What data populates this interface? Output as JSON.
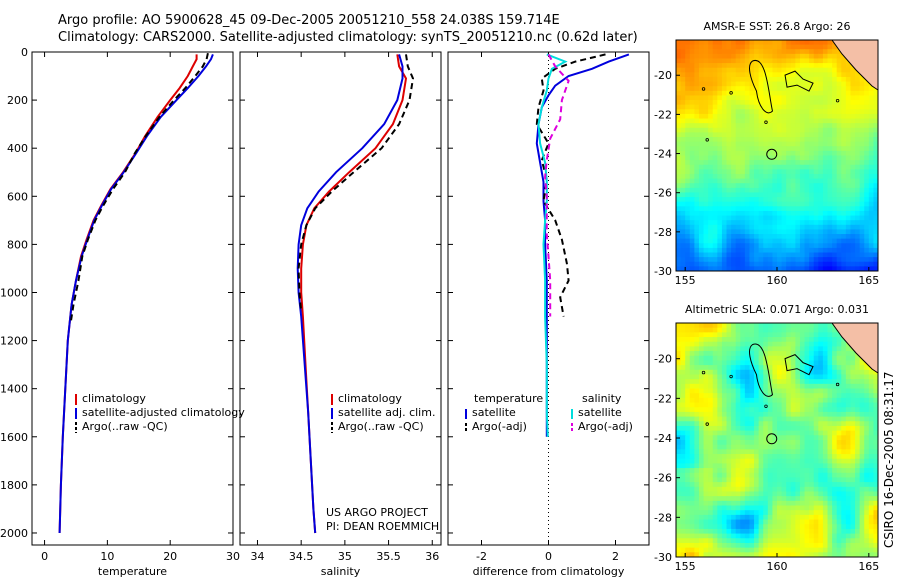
{
  "header": {
    "line1": "Argo profile: AO 5900628_45 09-Dec-2005 20051210_558 24.038S 159.714E",
    "line2": "Climatology: CARS2000. Satellite-adjusted climatology: synTS_20051210.nc (0.62d later)"
  },
  "side_label": "CSIRO 16-Dec-2005 08:31:17",
  "project_note": [
    "US ARGO PROJECT",
    "PI: DEAN ROEMMICH"
  ],
  "colors": {
    "climatology": "#dd0000",
    "satellite": "#0000dd",
    "argo": "#000000",
    "salinity_satellite": "#00dddd",
    "salinity_argo": "#dd00dd"
  },
  "chart_data": [
    {
      "id": "temperature",
      "type": "line",
      "xlabel": "temperature",
      "ylabel": "",
      "xlim": [
        -2,
        30
      ],
      "ylim": [
        2050,
        0
      ],
      "xticks": [
        0,
        10,
        20,
        30
      ],
      "yticks": [
        0,
        200,
        400,
        600,
        800,
        1000,
        1200,
        1400,
        1600,
        1800,
        2000
      ],
      "legend": {
        "placement": "bottom-right",
        "entries": [
          {
            "label": "climatology",
            "color": "#dd0000",
            "dash": false
          },
          {
            "label": "satellite-adjusted climatology",
            "color": "#0000dd",
            "dash": false
          },
          {
            "label": "Argo(..raw -QC)",
            "color": "#000000",
            "dash": true
          }
        ]
      },
      "series": [
        {
          "name": "climatology",
          "color": "#dd0000",
          "dash": false,
          "points": [
            [
              24.2,
              10
            ],
            [
              24.2,
              30
            ],
            [
              23.6,
              60
            ],
            [
              22.8,
              100
            ],
            [
              21.5,
              150
            ],
            [
              20.0,
              200
            ],
            [
              18.0,
              270
            ],
            [
              16.0,
              350
            ],
            [
              14.5,
              420
            ],
            [
              12.5,
              500
            ],
            [
              10.5,
              570
            ],
            [
              9.0,
              640
            ],
            [
              7.8,
              700
            ],
            [
              6.7,
              780
            ],
            [
              5.8,
              850
            ],
            [
              5.0,
              950
            ],
            [
              4.3,
              1050
            ],
            [
              3.7,
              1200
            ],
            [
              3.3,
              1400
            ],
            [
              2.9,
              1600
            ],
            [
              2.6,
              1800
            ],
            [
              2.4,
              2000
            ]
          ]
        },
        {
          "name": "satellite-adjusted climatology",
          "color": "#0000dd",
          "dash": false,
          "points": [
            [
              26.8,
              10
            ],
            [
              26.5,
              30
            ],
            [
              25.7,
              60
            ],
            [
              24.5,
              100
            ],
            [
              22.8,
              150
            ],
            [
              21.0,
              200
            ],
            [
              18.5,
              270
            ],
            [
              16.3,
              350
            ],
            [
              14.6,
              420
            ],
            [
              12.6,
              500
            ],
            [
              10.6,
              570
            ],
            [
              9.1,
              640
            ],
            [
              7.9,
              700
            ],
            [
              6.8,
              780
            ],
            [
              5.9,
              850
            ],
            [
              5.0,
              950
            ],
            [
              4.3,
              1050
            ],
            [
              3.7,
              1200
            ],
            [
              3.3,
              1400
            ],
            [
              2.9,
              1600
            ],
            [
              2.6,
              1800
            ],
            [
              2.4,
              2000
            ]
          ]
        },
        {
          "name": "Argo(..raw -QC)",
          "color": "#000000",
          "dash": true,
          "points": [
            [
              26.0,
              5
            ],
            [
              25.8,
              30
            ],
            [
              25.2,
              60
            ],
            [
              24.0,
              100
            ],
            [
              22.4,
              150
            ],
            [
              20.6,
              200
            ],
            [
              18.3,
              270
            ],
            [
              16.1,
              350
            ],
            [
              14.4,
              420
            ],
            [
              12.8,
              500
            ],
            [
              10.9,
              570
            ],
            [
              9.3,
              640
            ],
            [
              8.1,
              700
            ],
            [
              6.9,
              780
            ],
            [
              6.0,
              850
            ],
            [
              5.4,
              950
            ],
            [
              4.6,
              1050
            ],
            [
              4.2,
              1120
            ]
          ]
        }
      ]
    },
    {
      "id": "salinity",
      "type": "line",
      "xlabel": "salinity",
      "ylabel": "",
      "xlim": [
        33.8,
        36.1
      ],
      "ylim": [
        2050,
        0
      ],
      "xticks": [
        34,
        34.5,
        35,
        35.5,
        36
      ],
      "yticks": [
        0,
        200,
        400,
        600,
        800,
        1000,
        1200,
        1400,
        1600,
        1800,
        2000
      ],
      "legend": {
        "placement": "bottom-right",
        "entries": [
          {
            "label": "climatology",
            "color": "#dd0000",
            "dash": false
          },
          {
            "label": "satellite adj. clim.",
            "color": "#0000dd",
            "dash": false
          },
          {
            "label": "Argo(..raw -QC)",
            "color": "#000000",
            "dash": true
          }
        ]
      },
      "series": [
        {
          "name": "climatology",
          "color": "#dd0000",
          "dash": false,
          "points": [
            [
              35.6,
              10
            ],
            [
              35.62,
              60
            ],
            [
              35.7,
              110
            ],
            [
              35.66,
              200
            ],
            [
              35.55,
              300
            ],
            [
              35.35,
              400
            ],
            [
              35.05,
              500
            ],
            [
              34.82,
              580
            ],
            [
              34.65,
              650
            ],
            [
              34.56,
              720
            ],
            [
              34.52,
              800
            ],
            [
              34.5,
              900
            ],
            [
              34.5,
              1000
            ],
            [
              34.52,
              1100
            ],
            [
              34.55,
              1300
            ],
            [
              34.58,
              1500
            ],
            [
              34.61,
              1700
            ],
            [
              34.64,
              1900
            ],
            [
              34.66,
              2000
            ]
          ]
        },
        {
          "name": "satellite adj. clim.",
          "color": "#0000dd",
          "dash": false,
          "points": [
            [
              35.62,
              10
            ],
            [
              35.66,
              60
            ],
            [
              35.66,
              110
            ],
            [
              35.6,
              200
            ],
            [
              35.45,
              300
            ],
            [
              35.2,
              400
            ],
            [
              34.9,
              500
            ],
            [
              34.7,
              580
            ],
            [
              34.57,
              650
            ],
            [
              34.5,
              720
            ],
            [
              34.47,
              800
            ],
            [
              34.46,
              900
            ],
            [
              34.47,
              1000
            ],
            [
              34.5,
              1100
            ],
            [
              34.54,
              1300
            ],
            [
              34.58,
              1500
            ],
            [
              34.61,
              1700
            ],
            [
              34.64,
              1900
            ],
            [
              34.66,
              2000
            ]
          ]
        },
        {
          "name": "Argo(..raw -QC)",
          "color": "#000000",
          "dash": true,
          "points": [
            [
              35.7,
              10
            ],
            [
              35.72,
              60
            ],
            [
              35.78,
              110
            ],
            [
              35.74,
              200
            ],
            [
              35.62,
              300
            ],
            [
              35.42,
              400
            ],
            [
              35.1,
              500
            ],
            [
              34.85,
              580
            ],
            [
              34.66,
              650
            ],
            [
              34.56,
              720
            ],
            [
              34.5,
              800
            ],
            [
              34.47,
              900
            ],
            [
              34.48,
              1000
            ],
            [
              34.5,
              1080
            ]
          ]
        }
      ]
    },
    {
      "id": "difference",
      "type": "line",
      "xlabel": "difference from climatology",
      "ylabel": "",
      "xlim": [
        -3,
        3
      ],
      "ylim": [
        2050,
        0
      ],
      "xticks": [
        -2,
        0,
        2
      ],
      "yticks": [
        0,
        200,
        400,
        600,
        800,
        1000,
        1200,
        1400,
        1600,
        1800,
        2000
      ],
      "legend": {
        "placement": "bottom",
        "entries": [
          {
            "label": "temperature",
            "color": "",
            "dash": false
          },
          {
            "label": "satellite",
            "color": "#0000dd",
            "dash": false
          },
          {
            "label": "Argo(-adj)",
            "color": "#000000",
            "dash": true
          },
          {
            "label": "salinity",
            "color": "",
            "dash": false
          },
          {
            "label": "satellite",
            "color": "#00dddd",
            "dash": false
          },
          {
            "label": "Argo(-adj)",
            "color": "#dd00dd",
            "dash": true
          }
        ]
      },
      "series": [
        {
          "name": "temperature satellite",
          "color": "#0000dd",
          "dash": false,
          "points": [
            [
              2.4,
              10
            ],
            [
              1.8,
              40
            ],
            [
              1.3,
              70
            ],
            [
              0.6,
              100
            ],
            [
              0.2,
              140
            ],
            [
              0.0,
              180
            ],
            [
              -0.2,
              230
            ],
            [
              -0.3,
              300
            ],
            [
              -0.35,
              380
            ],
            [
              -0.25,
              460
            ],
            [
              -0.15,
              540
            ],
            [
              -0.15,
              620
            ],
            [
              -0.1,
              700
            ],
            [
              -0.1,
              800
            ],
            [
              -0.05,
              950
            ],
            [
              -0.05,
              1100
            ],
            [
              -0.05,
              1300
            ],
            [
              -0.05,
              1500
            ],
            [
              -0.05,
              1600
            ]
          ]
        },
        {
          "name": "temperature Argo(-adj)",
          "color": "#000000",
          "dash": true,
          "points": [
            [
              1.7,
              10
            ],
            [
              0.8,
              40
            ],
            [
              0.2,
              70
            ],
            [
              -0.2,
              110
            ],
            [
              -0.15,
              160
            ],
            [
              -0.3,
              230
            ],
            [
              -0.35,
              300
            ],
            [
              0.0,
              380
            ],
            [
              -0.2,
              450
            ],
            [
              -0.05,
              530
            ],
            [
              -0.15,
              620
            ],
            [
              0.2,
              700
            ],
            [
              0.4,
              780
            ],
            [
              0.55,
              880
            ],
            [
              0.6,
              950
            ],
            [
              0.35,
              1020
            ],
            [
              0.45,
              1100
            ]
          ]
        },
        {
          "name": "salinity satellite",
          "color": "#00dddd",
          "dash": false,
          "points": [
            [
              -0.05,
              10
            ],
            [
              0.5,
              40
            ],
            [
              0.1,
              70
            ],
            [
              0.0,
              110
            ],
            [
              -0.05,
              160
            ],
            [
              -0.2,
              230
            ],
            [
              -0.3,
              300
            ],
            [
              -0.25,
              380
            ],
            [
              -0.1,
              460
            ],
            [
              -0.05,
              540
            ],
            [
              -0.05,
              620
            ],
            [
              -0.1,
              700
            ],
            [
              -0.15,
              800
            ],
            [
              -0.1,
              950
            ],
            [
              -0.1,
              1100
            ],
            [
              -0.05,
              1300
            ],
            [
              -0.05,
              1500
            ],
            [
              -0.02,
              1600
            ]
          ]
        },
        {
          "name": "salinity Argo(-adj)",
          "color": "#dd00dd",
          "dash": true,
          "points": [
            [
              0.0,
              10
            ],
            [
              0.2,
              60
            ],
            [
              0.6,
              120
            ],
            [
              0.4,
              200
            ],
            [
              0.35,
              280
            ],
            [
              0.05,
              360
            ],
            [
              -0.05,
              450
            ],
            [
              -0.1,
              520
            ],
            [
              -0.05,
              600
            ],
            [
              -0.05,
              680
            ],
            [
              -0.05,
              760
            ],
            [
              0.0,
              850
            ],
            [
              0.05,
              950
            ],
            [
              0.05,
              1100
            ]
          ]
        }
      ]
    },
    {
      "id": "sst_map",
      "type": "heatmap",
      "title": "AMSR-E SST: 26.8 Argo: 26",
      "xlim": [
        154.5,
        165.5
      ],
      "ylim": [
        -30,
        -18.2
      ],
      "xticks": [
        155,
        160,
        165
      ],
      "yticks": [
        -20,
        -22,
        -24,
        -26,
        -28,
        -30
      ],
      "argo_position": [
        159.714,
        -24.038
      ]
    },
    {
      "id": "sla_map",
      "type": "heatmap",
      "title": "Altimetric SLA: 0.071 Argo: 0.031",
      "xlim": [
        154.5,
        165.5
      ],
      "ylim": [
        -30,
        -18.2
      ],
      "xticks": [
        155,
        160,
        165
      ],
      "yticks": [
        -20,
        -22,
        -24,
        -26,
        -28,
        -30
      ],
      "argo_position": [
        159.714,
        -24.038
      ]
    }
  ]
}
